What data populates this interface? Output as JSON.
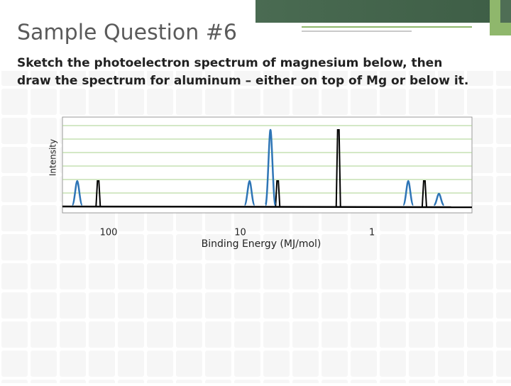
{
  "slide": {
    "title": "Sample Question #6",
    "text": [
      "Sketch the photoelectron spectrum of magnesium below, then",
      "draw the spectrum for aluminum – either on top of Mg or below it."
    ]
  },
  "chart_data": {
    "type": "spectrum",
    "xlabel": "Binding Energy (MJ/mol)",
    "ylabel": "Intensity",
    "xscale": "log",
    "xlim": [
      224,
      0.174
    ],
    "ylim": [
      0,
      7
    ],
    "xticks": [
      100,
      10,
      1
    ],
    "series": [
      {
        "color": "#000000",
        "style": "spike",
        "x": [
          120,
          5.2,
          1.8,
          0.4
        ],
        "values": [
          2,
          2,
          6,
          2
        ]
      },
      {
        "color": "#2e75b6",
        "style": "peak",
        "x": [
          173,
          8.5,
          5.9,
          0.53,
          0.31
        ],
        "values": [
          2,
          2,
          6,
          2,
          1
        ]
      }
    ]
  }
}
